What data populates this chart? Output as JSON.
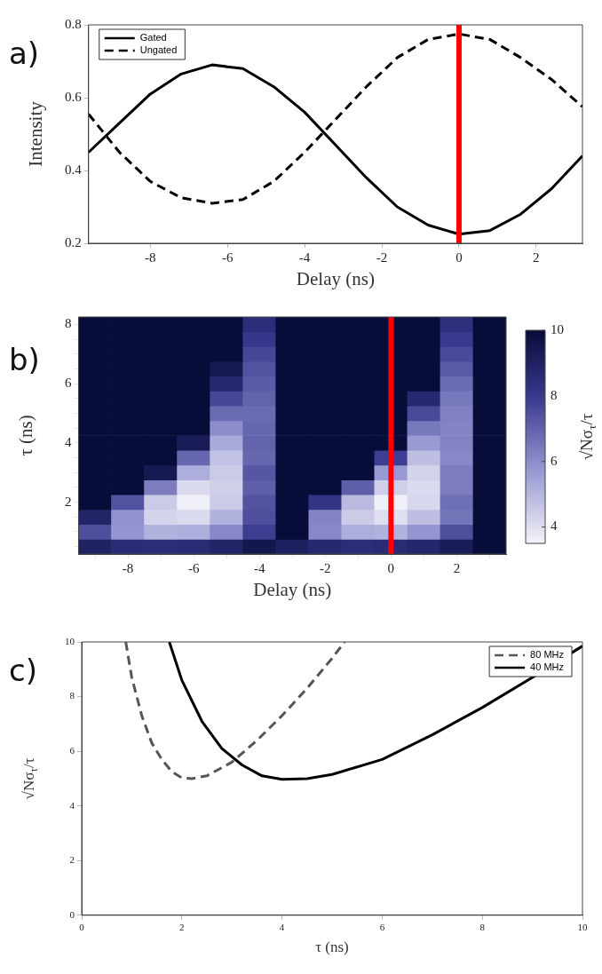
{
  "chart_data": [
    {
      "type": "line",
      "xlabel": "Delay (ns)",
      "ylabel": "Intensity",
      "annotations": [
        "a)"
      ],
      "x": [
        -9.6,
        -8.8,
        -8,
        -7.2,
        -6.4,
        -5.6,
        -4.8,
        -4,
        -3.2,
        -2.4,
        -1.6,
        -0.8,
        0,
        0.8,
        1.6,
        2.4,
        3.2
      ],
      "series": [
        {
          "name": "Gated",
          "color": "#000000",
          "line_style": "solid",
          "values": [
            0.45,
            0.53,
            0.61,
            0.665,
            0.69,
            0.68,
            0.63,
            0.56,
            0.47,
            0.38,
            0.3,
            0.25,
            0.225,
            0.235,
            0.28,
            0.35,
            0.44
          ]
        },
        {
          "name": "Ungated",
          "color": "#000000",
          "line_style": "dashed",
          "values": [
            0.555,
            0.45,
            0.37,
            0.325,
            0.31,
            0.32,
            0.37,
            0.45,
            0.54,
            0.63,
            0.71,
            0.76,
            0.775,
            0.76,
            0.71,
            0.65,
            0.575
          ]
        }
      ],
      "xlim": [
        -9.6,
        3.2
      ],
      "xticks": [
        -8,
        -6,
        -4,
        -2,
        0,
        2
      ],
      "ylim": [
        0.2,
        0.8
      ],
      "yticks": [
        0.2,
        0.4,
        0.6,
        0.8
      ],
      "legend": "top left",
      "ref_lines": [
        {
          "axis": "x",
          "value": 0,
          "color": "#ff0000"
        }
      ]
    },
    {
      "type": "heatmap",
      "xlabel": "Delay (ns)",
      "ylabel": "τ (ns)",
      "clabel": "√Nσ$_{τ}$/τ",
      "annotations": [
        "b)"
      ],
      "categories": [
        null,
        "-8",
        null,
        "-6",
        null,
        "-4",
        null,
        "-2",
        null,
        "0",
        null,
        "2",
        null
      ],
      "y_categories": [
        "8",
        null,
        null,
        null,
        "6",
        null,
        null,
        null,
        "4",
        null,
        null,
        null,
        "2",
        null,
        null,
        null
      ],
      "cells": [
        [
          10,
          10,
          10,
          10,
          10,
          8.5,
          10,
          10,
          10,
          10,
          10,
          8.4,
          10
        ],
        [
          10,
          10,
          10,
          10,
          10,
          8.1,
          10,
          10,
          10,
          10,
          10,
          8.0,
          10
        ],
        [
          10,
          10,
          10,
          10,
          10,
          7.7,
          10,
          10,
          10,
          10,
          10,
          7.6,
          10
        ],
        [
          10,
          10,
          10,
          10,
          9.4,
          7.4,
          10,
          10,
          10,
          10,
          10,
          7.2,
          10
        ],
        [
          10,
          10,
          10,
          10,
          8.7,
          7.2,
          10,
          10,
          10,
          10,
          10,
          6.8,
          10
        ],
        [
          10,
          10,
          10,
          10,
          7.7,
          7.0,
          10,
          10,
          10,
          10,
          8.7,
          6.5,
          10
        ],
        [
          10,
          10,
          10,
          10,
          6.8,
          6.8,
          10,
          10,
          10,
          10,
          7.6,
          6.3,
          10
        ],
        [
          10,
          10,
          10,
          10,
          6.0,
          6.9,
          10,
          10,
          10,
          10,
          6.5,
          6.2,
          10
        ],
        [
          10,
          10,
          10,
          9.3,
          5.3,
          7.0,
          10,
          10,
          10,
          10,
          5.7,
          6.2,
          10
        ],
        [
          10,
          10,
          10,
          6.9,
          4.7,
          6.9,
          10,
          10,
          10,
          7.9,
          4.8,
          6.1,
          10
        ],
        [
          10,
          10,
          9.4,
          5.2,
          4.5,
          7.3,
          10,
          10,
          10,
          5.7,
          4.3,
          6.4,
          10
        ],
        [
          10,
          10,
          6.4,
          4.1,
          4.4,
          7.1,
          10,
          10,
          7.1,
          4.4,
          4.1,
          6.4,
          10
        ],
        [
          10,
          7.4,
          4.5,
          3.6,
          4.5,
          7.4,
          10,
          8.2,
          4.9,
          3.6,
          4.2,
          6.7,
          10
        ],
        [
          8.9,
          5.9,
          4.3,
          4.1,
          5.1,
          7.5,
          10,
          6.2,
          4.5,
          4.0,
          4.8,
          6.6,
          10
        ],
        [
          7.5,
          5.8,
          5.1,
          5.2,
          6.1,
          7.9,
          10,
          6.1,
          5.2,
          5.1,
          5.8,
          7.5,
          10
        ],
        [
          9.0,
          8.6,
          8.5,
          8.6,
          8.9,
          9.5,
          9.1,
          8.7,
          8.5,
          8.6,
          8.8,
          9.3,
          10
        ]
      ],
      "clim": [
        3.5,
        10
      ],
      "cticks": [
        4,
        6,
        8,
        10
      ],
      "ref_lines": [
        {
          "axis": "x",
          "value": "0",
          "color": "#ff0000"
        }
      ]
    },
    {
      "type": "line",
      "xlabel": "τ (ns)",
      "ylabel": "√Nσ$_{τ}$/τ",
      "annotations": [
        "c)"
      ],
      "series": [
        {
          "name": "80 MHz",
          "color": "#555555",
          "line_style": "dashed",
          "x": [
            0.88,
            1.0,
            1.2,
            1.4,
            1.6,
            1.8,
            2.0,
            2.2,
            2.5,
            3.0,
            3.5,
            4.0,
            4.5,
            5.0,
            5.25
          ],
          "values": [
            10,
            8.7,
            7.3,
            6.3,
            5.7,
            5.25,
            5.03,
            5.0,
            5.1,
            5.6,
            6.4,
            7.3,
            8.3,
            9.4,
            10
          ]
        },
        {
          "name": "40 MHz",
          "color": "#000000",
          "line_style": "solid",
          "x": [
            1.75,
            2.0,
            2.4,
            2.8,
            3.2,
            3.6,
            4.0,
            4.5,
            5,
            6,
            7,
            8,
            9,
            10
          ],
          "values": [
            10,
            8.6,
            7.1,
            6.1,
            5.5,
            5.1,
            4.97,
            5.0,
            5.15,
            5.7,
            6.6,
            7.6,
            8.7,
            9.85
          ]
        }
      ],
      "xlim": [
        0,
        10
      ],
      "xticks": [
        0,
        2,
        4,
        6,
        8,
        10
      ],
      "ylim": [
        0,
        10
      ],
      "yticks": [
        0,
        2,
        4,
        6,
        8,
        10
      ],
      "legend": "top right"
    }
  ]
}
